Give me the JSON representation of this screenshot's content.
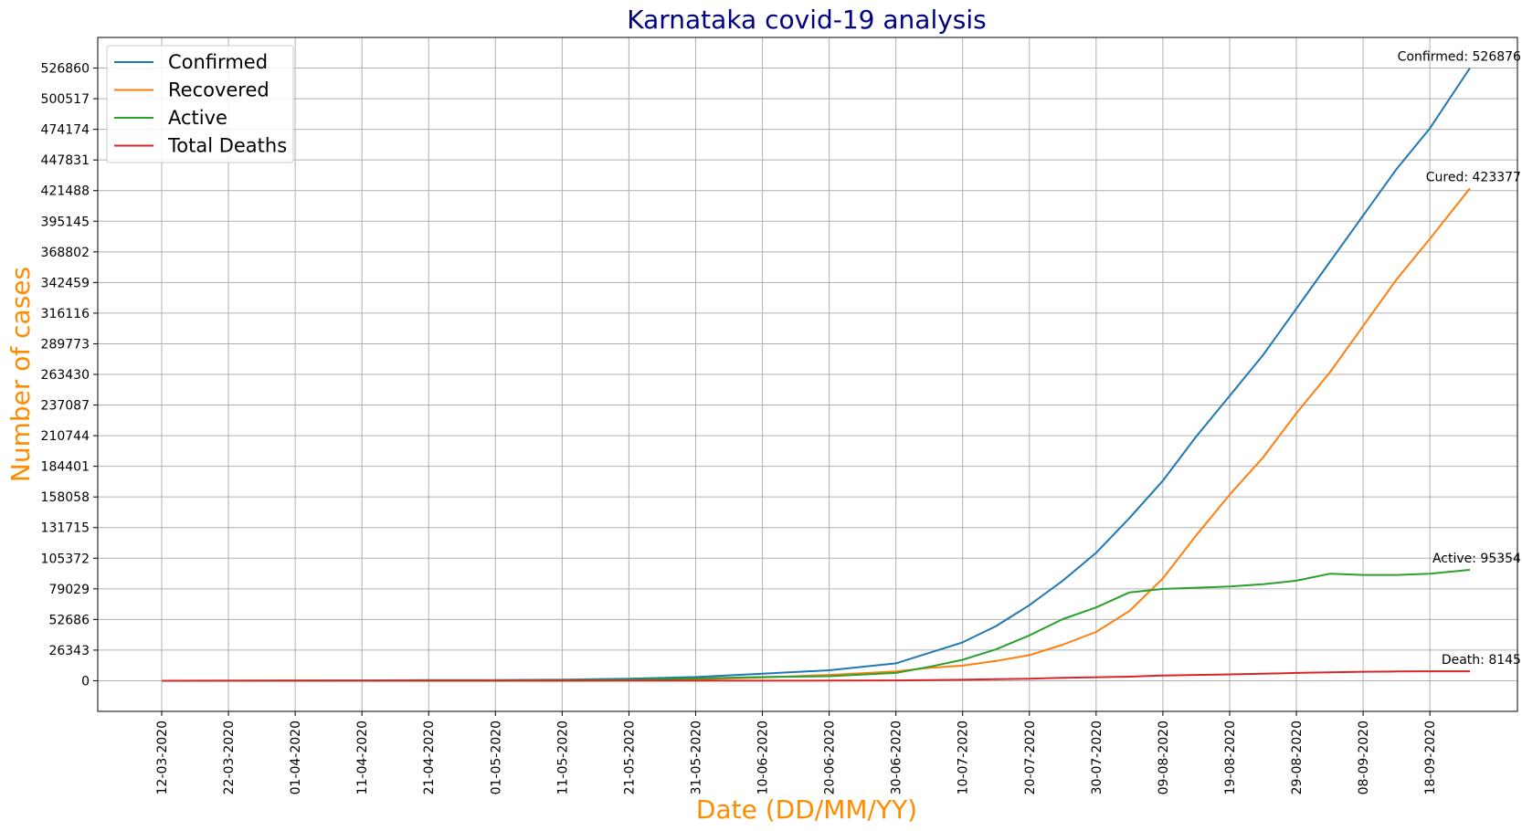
{
  "chart_data": {
    "type": "line",
    "title": "Karnataka covid-19 analysis",
    "xlabel": "Date (DD/MM/YY)",
    "ylabel": "Number of cases",
    "x_tick_labels": [
      "12-03-2020",
      "22-03-2020",
      "01-04-2020",
      "11-04-2020",
      "21-04-2020",
      "01-05-2020",
      "11-05-2020",
      "21-05-2020",
      "31-05-2020",
      "10-06-2020",
      "20-06-2020",
      "30-06-2020",
      "10-07-2020",
      "20-07-2020",
      "30-07-2020",
      "09-08-2020",
      "19-08-2020",
      "29-08-2020",
      "08-09-2020",
      "18-09-2020"
    ],
    "y_ticks": [
      0,
      26343,
      52686,
      79029,
      105372,
      131715,
      158058,
      184401,
      210744,
      237087,
      263430,
      289773,
      316116,
      342459,
      368802,
      395145,
      421488,
      447831,
      474174,
      500517,
      526860
    ],
    "ylim": [
      -26343,
      553203
    ],
    "grid": true,
    "legend_position": "top-left",
    "x": [
      "12-03-2020",
      "22-03-2020",
      "01-04-2020",
      "11-04-2020",
      "21-04-2020",
      "01-05-2020",
      "11-05-2020",
      "21-05-2020",
      "31-05-2020",
      "10-06-2020",
      "20-06-2020",
      "30-06-2020",
      "05-07-2020",
      "10-07-2020",
      "15-07-2020",
      "20-07-2020",
      "25-07-2020",
      "30-07-2020",
      "04-08-2020",
      "09-08-2020",
      "14-08-2020",
      "19-08-2020",
      "24-08-2020",
      "29-08-2020",
      "03-09-2020",
      "08-09-2020",
      "13-09-2020",
      "18-09-2020",
      "24-09-2020"
    ],
    "series": [
      {
        "name": "Confirmed",
        "color": "#1f77b4",
        "values": [
          0,
          20,
          100,
          250,
          500,
          600,
          900,
          1700,
          3200,
          6000,
          9000,
          15000,
          24000,
          33000,
          47000,
          65000,
          86000,
          110000,
          140000,
          172000,
          210000,
          245000,
          280000,
          320000,
          360000,
          400000,
          440000,
          475000,
          526876
        ]
      },
      {
        "name": "Recovered",
        "color": "#ff7f0e",
        "values": [
          0,
          0,
          10,
          50,
          150,
          300,
          500,
          800,
          1200,
          2800,
          5000,
          8000,
          11000,
          13000,
          17000,
          22000,
          31000,
          42000,
          60000,
          88000,
          125000,
          160000,
          192000,
          230000,
          265000,
          305000,
          345000,
          380000,
          423377
        ]
      },
      {
        "name": "Active",
        "color": "#2ca02c",
        "values": [
          0,
          20,
          90,
          200,
          350,
          300,
          400,
          880,
          1950,
          3150,
          3900,
          6700,
          12000,
          18000,
          27000,
          39000,
          53000,
          63000,
          76000,
          79000,
          80000,
          81000,
          83000,
          86000,
          92000,
          91000,
          91000,
          92000,
          95354
        ]
      },
      {
        "name": "Total Deaths",
        "color": "#d62728",
        "values": [
          0,
          0,
          0,
          0,
          0,
          0,
          0,
          20,
          50,
          50,
          100,
          300,
          500,
          800,
          1300,
          1800,
          2500,
          3000,
          3500,
          4500,
          5000,
          5500,
          6000,
          6700,
          7200,
          7700,
          8000,
          8100,
          8145
        ]
      }
    ],
    "annotations": [
      {
        "text": "Confirmed: 526876",
        "series": "Confirmed",
        "value": 526876
      },
      {
        "text": "Cured: 423377",
        "series": "Recovered",
        "value": 423377
      },
      {
        "text": "Active: 95354",
        "series": "Active",
        "value": 95354
      },
      {
        "text": "Death: 8145",
        "series": "Total Deaths",
        "value": 8145
      }
    ]
  }
}
